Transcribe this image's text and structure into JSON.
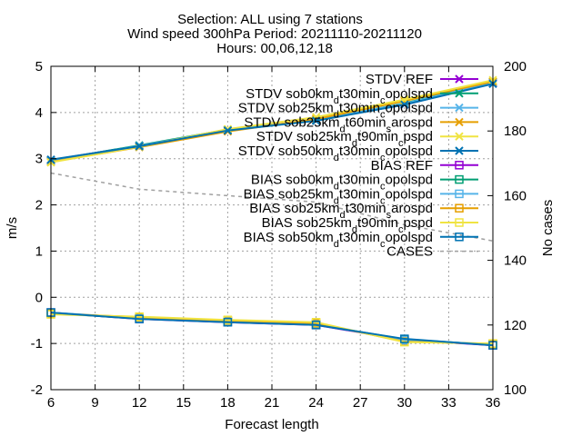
{
  "chart_data": {
    "type": "line",
    "title_lines": [
      "Selection: ALL using      7 stations",
      "Wind speed 300hPa   Period: 20211110-20211120",
      "Hours: 00,06,12,18"
    ],
    "xlabel": "Forecast length",
    "ylabel": "m/s",
    "y2label": "No cases",
    "xlim": [
      6,
      36
    ],
    "ylim": [
      -2,
      5
    ],
    "y2lim": [
      100,
      200
    ],
    "xticks": [
      6,
      9,
      12,
      15,
      18,
      21,
      24,
      27,
      30,
      33,
      36
    ],
    "yticks": [
      -2,
      -1,
      0,
      1,
      2,
      3,
      4,
      5
    ],
    "y2ticks": [
      100,
      120,
      140,
      160,
      180,
      200
    ],
    "grid": true,
    "legend_position": "top-right",
    "x": [
      6,
      12,
      18,
      24,
      30,
      36
    ],
    "series": [
      {
        "name": "STDV REF",
        "axis": "y1",
        "color": "#9400d3",
        "marker": "x",
        "dash": "",
        "values": [
          2.97,
          3.28,
          3.62,
          3.84,
          4.17,
          4.63
        ]
      },
      {
        "name": "STDV sob0km_d t30min_c opolspd",
        "axis": "y1",
        "color": "#009e73",
        "marker": "x",
        "dash": "",
        "values": [
          2.96,
          3.29,
          3.63,
          3.83,
          4.2,
          4.66
        ]
      },
      {
        "name": "STDV sob25km_d t30min_c opolspd",
        "axis": "y1",
        "color": "#56b4e9",
        "marker": "x",
        "dash": "",
        "values": [
          2.95,
          3.28,
          3.62,
          3.84,
          4.19,
          4.65
        ]
      },
      {
        "name": "STDV sob25km_d t60min_s arospd",
        "axis": "y1",
        "color": "#e69f00",
        "marker": "x",
        "dash": "",
        "values": [
          2.93,
          3.25,
          3.59,
          3.86,
          4.25,
          4.67
        ]
      },
      {
        "name": "STDV sob25km_d t90min_c pspd",
        "axis": "y1",
        "color": "#f0e442",
        "marker": "x",
        "dash": "",
        "values": [
          2.92,
          3.26,
          3.64,
          3.9,
          4.28,
          4.7
        ]
      },
      {
        "name": "STDV sob50km_d t30min_c opolspd",
        "axis": "y1",
        "color": "#0072b2",
        "marker": "x",
        "dash": "",
        "values": [
          2.98,
          3.27,
          3.61,
          3.82,
          4.17,
          4.62
        ]
      },
      {
        "name": "BIAS REF",
        "axis": "y1",
        "color": "#9400d3",
        "marker": "square",
        "dash": "",
        "values": [
          -0.33,
          -0.47,
          -0.54,
          -0.6,
          -0.92,
          -1.04
        ]
      },
      {
        "name": "BIAS sob0km_d t30min_c opolspd",
        "axis": "y1",
        "color": "#009e73",
        "marker": "square",
        "dash": "",
        "values": [
          -0.34,
          -0.46,
          -0.53,
          -0.59,
          -0.91,
          -1.03
        ]
      },
      {
        "name": "BIAS sob25km_d t30min_c opolspd",
        "axis": "y1",
        "color": "#56b4e9",
        "marker": "square",
        "dash": "",
        "values": [
          -0.33,
          -0.45,
          -0.52,
          -0.58,
          -0.93,
          -1.02
        ]
      },
      {
        "name": "BIAS sob25km_d t30min_s arospd",
        "axis": "y1",
        "color": "#e69f00",
        "marker": "square",
        "dash": "",
        "values": [
          -0.35,
          -0.43,
          -0.5,
          -0.56,
          -0.96,
          -1.01
        ]
      },
      {
        "name": "BIAS sob25km_d t90min_c pspd",
        "axis": "y1",
        "color": "#f0e442",
        "marker": "square",
        "dash": "",
        "values": [
          -0.37,
          -0.42,
          -0.49,
          -0.54,
          -0.97,
          -1.0
        ]
      },
      {
        "name": "BIAS sob50km_d t30min_c opolspd",
        "axis": "y1",
        "color": "#0072b2",
        "marker": "square",
        "dash": "",
        "values": [
          -0.33,
          -0.47,
          -0.54,
          -0.6,
          -0.9,
          -1.04
        ]
      },
      {
        "name": "CASES",
        "axis": "y2",
        "color": "#a0a0a0",
        "marker": "none",
        "dash": "4,4",
        "values": [
          167,
          162,
          160,
          158,
          151,
          146
        ]
      }
    ]
  },
  "legend_labels": [
    {
      "main": "STDV REF"
    },
    {
      "main": "STDV sob0km",
      "sub1": "d",
      "mid1": "t30min",
      "sub2": "c",
      "tail": "opolspd"
    },
    {
      "main": "STDV sob25km",
      "sub1": "d",
      "mid1": "t30min",
      "sub2": "c",
      "tail": "opolspd"
    },
    {
      "main": "STDV sob25km",
      "sub1": "d",
      "mid1": "t60min",
      "sub2": "s",
      "tail": "arospd"
    },
    {
      "main": "STDV sob25km",
      "sub1": "d",
      "mid1": "t90min",
      "sub2": "c",
      "tail": "pspd"
    },
    {
      "main": "STDV sob50km",
      "sub1": "d",
      "mid1": "t30min",
      "sub2": "c",
      "tail": "opolspd"
    },
    {
      "main": "BIAS REF"
    },
    {
      "main": "BIAS sob0km",
      "sub1": "d",
      "mid1": "t30min",
      "sub2": "c",
      "tail": "opolspd"
    },
    {
      "main": "BIAS sob25km",
      "sub1": "d",
      "mid1": "t30min",
      "sub2": "c",
      "tail": "opolspd"
    },
    {
      "main": "BIAS sob25km",
      "sub1": "d",
      "mid1": "t30min",
      "sub2": "s",
      "tail": "arospd"
    },
    {
      "main": "BIAS sob25km",
      "sub1": "d",
      "mid1": "t90min",
      "sub2": "c",
      "tail": "pspd"
    },
    {
      "main": "BIAS sob50km",
      "sub1": "d",
      "mid1": "t30min",
      "sub2": "c",
      "tail": "opolspd"
    },
    {
      "main": "CASES"
    }
  ]
}
